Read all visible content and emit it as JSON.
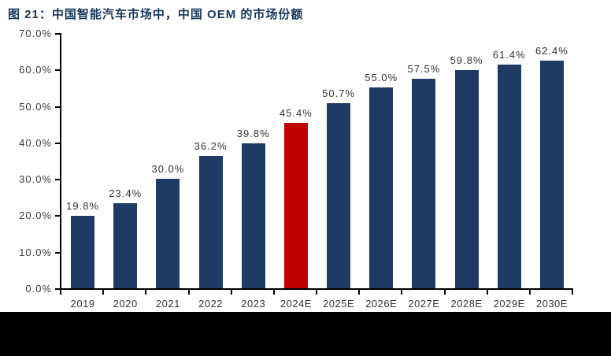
{
  "figure": {
    "title": "图 21：中国智能汽车市场中，中国 OEM 的市场份额"
  },
  "chart_data": {
    "type": "bar",
    "title": "图 21：中国智能汽车市场中，中国 OEM 的市场份额",
    "categories": [
      "2019",
      "2020",
      "2021",
      "2022",
      "2023",
      "2024E",
      "2025E",
      "2026E",
      "2027E",
      "2028E",
      "2029E",
      "2030E"
    ],
    "values": [
      19.8,
      23.4,
      30.0,
      36.2,
      39.8,
      45.4,
      50.7,
      55.0,
      57.5,
      59.8,
      61.4,
      62.4
    ],
    "value_labels": [
      "19.8%",
      "23.4%",
      "30.0%",
      "36.2%",
      "39.8%",
      "45.4%",
      "50.7%",
      "55.0%",
      "57.5%",
      "59.8%",
      "61.4%",
      "62.4%"
    ],
    "highlight_index": 5,
    "highlight_category": "2024E",
    "y_tick_labels": [
      "0.0%",
      "10.0%",
      "20.0%",
      "30.0%",
      "40.0%",
      "50.0%",
      "60.0%",
      "70.0%"
    ],
    "y_tick_values": [
      0,
      10,
      20,
      30,
      40,
      50,
      60,
      70
    ],
    "ylim": [
      0,
      70
    ],
    "xlabel": "",
    "ylabel": "",
    "grid": false,
    "legend": null,
    "colors": {
      "bar": "#1F3A64",
      "highlight_bar": "#C00000",
      "axis": "#000000",
      "title_text": "#17375D",
      "label_text": "#333333",
      "background": "#FFFFFF",
      "bottom_band": "#000000"
    }
  }
}
